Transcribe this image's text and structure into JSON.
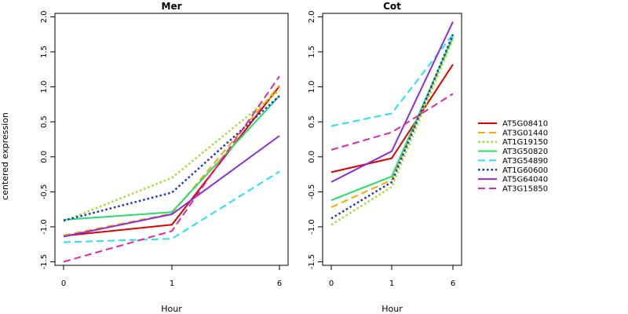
{
  "chart_data": {
    "type": "line",
    "ylabel": "centered expression",
    "xlabel": "Hour",
    "x_ticks": [
      "0",
      "1",
      "6"
    ],
    "y_ticks": [
      -1.5,
      -1.0,
      -0.5,
      0.0,
      0.5,
      1.0,
      1.5,
      2.0
    ],
    "ylim": [
      -1.55,
      2.05
    ],
    "grid": false,
    "legend_position": "right",
    "legend": [
      {
        "name": "AT5G08410",
        "color": "#DF0000",
        "dash": "solid",
        "width": 2
      },
      {
        "name": "AT3G01440",
        "color": "#FFA500",
        "dash": "long",
        "width": 2
      },
      {
        "name": "AT1G19150",
        "color": "#9AE22C",
        "dash": "dot",
        "width": 2.5
      },
      {
        "name": "AT3G50820",
        "color": "#22E068",
        "dash": "solid",
        "width": 2
      },
      {
        "name": "AT3G54890",
        "color": "#22E3F2",
        "dash": "long",
        "width": 2
      },
      {
        "name": "AT1G60600",
        "color": "#1B33D6",
        "dash": "dot",
        "width": 2.5
      },
      {
        "name": "AT5G64040",
        "color": "#8A2CE0",
        "dash": "solid",
        "width": 2
      },
      {
        "name": "AT3G15850",
        "color": "#E028A0",
        "dash": "long",
        "width": 2
      }
    ],
    "panels": [
      {
        "title": "Mer",
        "series": [
          {
            "name": "AT5G08410",
            "values": [
              -1.13,
              -0.97,
              1.01
            ]
          },
          {
            "name": "AT3G01440",
            "values": [
              -1.12,
              -0.81,
              1.02
            ]
          },
          {
            "name": "AT1G19150",
            "values": [
              -0.92,
              -0.3,
              0.95
            ]
          },
          {
            "name": "AT3G50820",
            "values": [
              -0.9,
              -0.79,
              0.87
            ]
          },
          {
            "name": "AT3G54890",
            "values": [
              -1.22,
              -1.17,
              -0.21
            ]
          },
          {
            "name": "AT1G60600",
            "values": [
              -0.91,
              -0.51,
              0.87
            ]
          },
          {
            "name": "AT5G64040",
            "values": [
              -1.14,
              -0.82,
              0.3
            ]
          },
          {
            "name": "AT3G15850",
            "values": [
              -1.5,
              -1.06,
              1.15
            ]
          }
        ]
      },
      {
        "title": "Cot",
        "series": [
          {
            "name": "AT5G08410",
            "values": [
              -0.22,
              -0.02,
              1.32
            ]
          },
          {
            "name": "AT3G01440",
            "values": [
              -0.72,
              -0.33,
              1.7
            ]
          },
          {
            "name": "AT1G19150",
            "values": [
              -0.97,
              -0.43,
              1.68
            ]
          },
          {
            "name": "AT3G50820",
            "values": [
              -0.62,
              -0.28,
              1.72
            ]
          },
          {
            "name": "AT3G54890",
            "values": [
              0.44,
              0.62,
              1.75
            ]
          },
          {
            "name": "AT1G60600",
            "values": [
              -0.88,
              -0.36,
              1.75
            ]
          },
          {
            "name": "AT5G64040",
            "values": [
              -0.36,
              0.08,
              1.93
            ]
          },
          {
            "name": "AT3G15850",
            "values": [
              0.1,
              0.35,
              0.9
            ]
          }
        ]
      }
    ]
  }
}
